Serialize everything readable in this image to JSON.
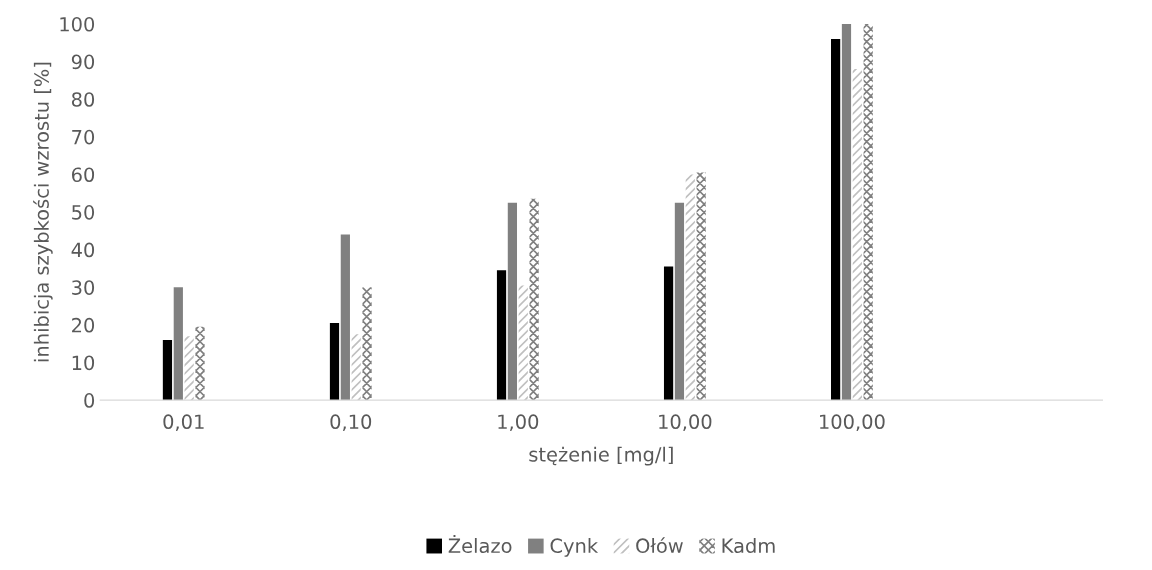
{
  "chart_data": {
    "type": "bar",
    "xlabel": "stężenie [mg/l]",
    "ylabel": "inhibicja szybkości wzrostu [%]",
    "categories": [
      "0,01",
      "0,10",
      "1,00",
      "10,00",
      "100,00",
      null
    ],
    "series": [
      {
        "name": "Żelazo",
        "color": "#000000",
        "values": [
          16,
          20.5,
          34.5,
          35.5,
          96,
          null
        ]
      },
      {
        "name": "Cynk",
        "color": "#808080",
        "values": [
          30,
          44,
          52.5,
          52.5,
          100,
          null
        ]
      },
      {
        "name": "Ołów",
        "color": "#bfbfbf",
        "values": [
          17,
          17.5,
          30.5,
          60,
          88,
          null
        ]
      },
      {
        "name": "Kadm",
        "color": "#7f7f7f",
        "values": [
          19.5,
          30,
          53.5,
          60.5,
          100,
          null
        ]
      }
    ],
    "ylim": [
      0,
      100
    ],
    "yticks": [
      0,
      10,
      20,
      30,
      40,
      50,
      60,
      70,
      80,
      90,
      100
    ],
    "grid": false,
    "legend": "bottom"
  }
}
